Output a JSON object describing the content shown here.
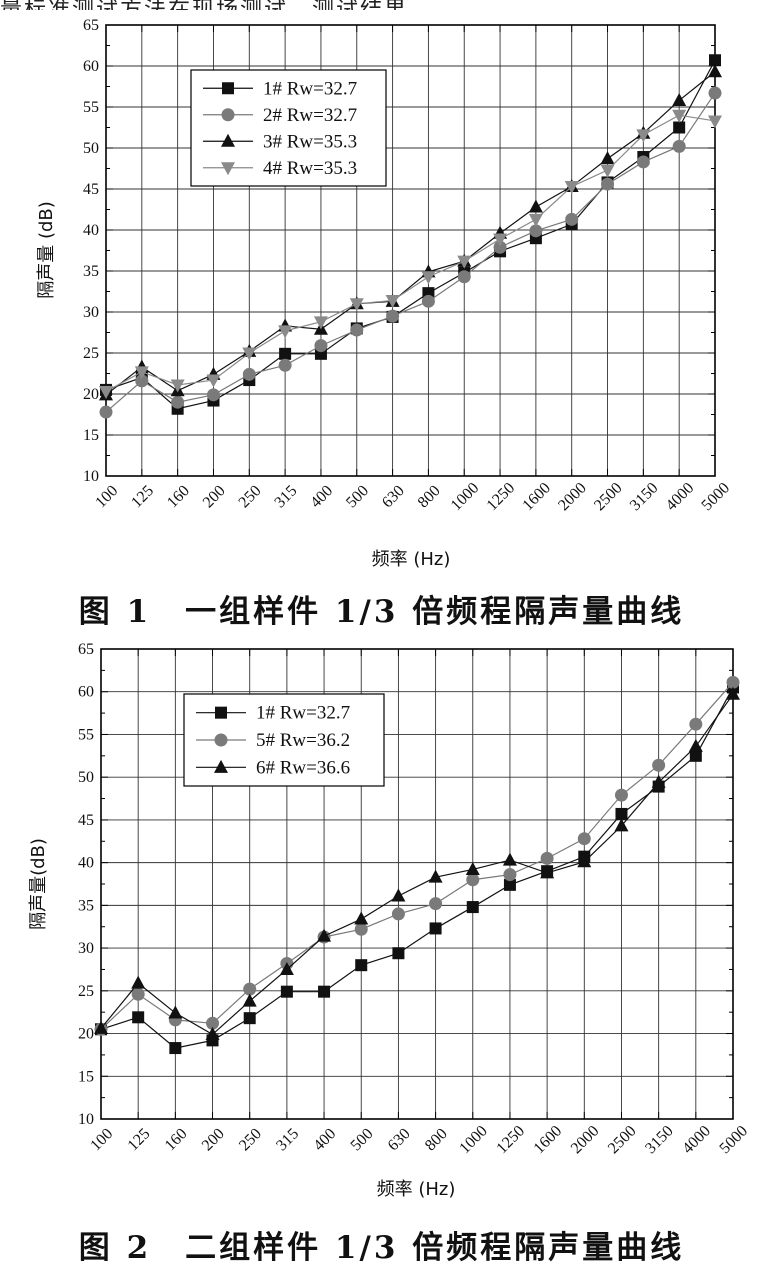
{
  "top_fragment": "量标准测试方法在现场测试，测试结果",
  "captions": [
    "图 1　一组样件 1/3 倍频程隔声量曲线",
    "图 2　二组样件 1/3 倍频程隔声量曲线"
  ],
  "chart_data": [
    {
      "type": "line",
      "title": "",
      "xlabel": "频率 (Hz)",
      "ylabel": "隔声量 (dB)",
      "ylim": [
        10,
        65
      ],
      "yticks": [
        10,
        15,
        20,
        25,
        30,
        35,
        40,
        45,
        50,
        55,
        60,
        65
      ],
      "categories": [
        "100",
        "125",
        "160",
        "200",
        "250",
        "315",
        "400",
        "500",
        "630",
        "800",
        "1000",
        "1250",
        "1600",
        "2000",
        "2500",
        "3150",
        "4000",
        "5000"
      ],
      "grid": true,
      "legend_position": "top-left",
      "series": [
        {
          "name": "1# Rw=32.7",
          "marker": "square",
          "color": "#111111",
          "values": [
            20.5,
            22.0,
            18.2,
            19.2,
            21.7,
            24.9,
            24.9,
            28.0,
            29.4,
            32.3,
            34.8,
            37.4,
            39.0,
            40.7,
            45.8,
            48.9,
            52.5,
            60.7
          ]
        },
        {
          "name": "2# Rw=32.7",
          "marker": "circle",
          "color": "#7a7a7a",
          "values": [
            17.8,
            21.6,
            19.0,
            19.9,
            22.4,
            23.5,
            25.9,
            27.8,
            29.5,
            31.3,
            34.3,
            37.9,
            39.9,
            41.3,
            45.6,
            48.3,
            50.2,
            56.7
          ]
        },
        {
          "name": "3# Rw=35.3",
          "marker": "triangle-up",
          "color": "#111111",
          "values": [
            19.9,
            23.3,
            20.4,
            22.4,
            25.2,
            28.3,
            27.9,
            31.0,
            31.3,
            34.9,
            36.2,
            39.6,
            42.8,
            45.3,
            48.7,
            51.8,
            55.8,
            59.3
          ]
        },
        {
          "name": "4# Rw=35.3",
          "marker": "triangle-down",
          "color": "#8a8a8a",
          "values": [
            20.3,
            22.7,
            21.1,
            21.7,
            25.0,
            27.7,
            28.8,
            31.0,
            31.4,
            34.3,
            36.2,
            38.9,
            41.3,
            45.3,
            47.3,
            51.6,
            54.0,
            53.3
          ]
        }
      ]
    },
    {
      "type": "line",
      "title": "",
      "xlabel": "频率 (Hz)",
      "ylabel": "隔声量(dB)",
      "ylim": [
        10,
        65
      ],
      "yticks": [
        10,
        15,
        20,
        25,
        30,
        35,
        40,
        45,
        50,
        55,
        60,
        65
      ],
      "categories": [
        "100",
        "125",
        "160",
        "200",
        "250",
        "315",
        "400",
        "500",
        "630",
        "800",
        "1000",
        "1250",
        "1600",
        "2000",
        "2500",
        "3150",
        "4000",
        "5000"
      ],
      "grid": true,
      "legend_position": "top-left",
      "series": [
        {
          "name": "1# Rw=32.7",
          "marker": "square",
          "color": "#111111",
          "values": [
            20.5,
            21.9,
            18.3,
            19.2,
            21.8,
            24.9,
            24.9,
            28.0,
            29.4,
            32.3,
            34.8,
            37.4,
            39.0,
            40.7,
            45.7,
            48.9,
            52.5,
            60.5
          ]
        },
        {
          "name": "5# Rw=36.2",
          "marker": "circle",
          "color": "#7a7a7a",
          "values": [
            20.5,
            24.6,
            21.6,
            21.2,
            25.2,
            28.2,
            31.3,
            32.2,
            34.0,
            35.2,
            38.0,
            38.6,
            40.5,
            42.8,
            47.9,
            51.4,
            56.2,
            61.1
          ]
        },
        {
          "name": "6# Rw=36.6",
          "marker": "triangle-up",
          "color": "#111111",
          "values": [
            20.6,
            25.9,
            22.4,
            19.9,
            23.8,
            27.5,
            31.4,
            33.4,
            36.1,
            38.3,
            39.2,
            40.3,
            38.8,
            40.1,
            44.3,
            49.4,
            53.6,
            59.7
          ]
        }
      ]
    }
  ]
}
